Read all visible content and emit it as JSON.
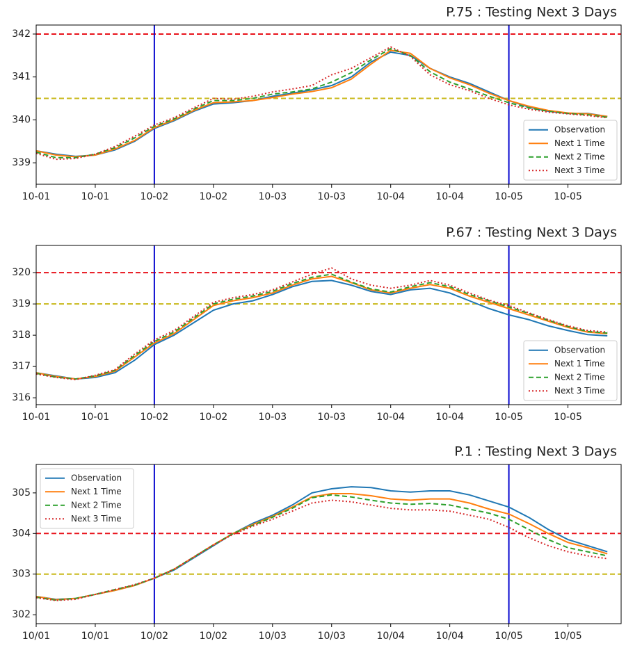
{
  "chart_data": [
    {
      "type": "line",
      "title": "P.75 : Testing Next 3 Days",
      "legend": "lower right",
      "x": [
        0,
        4,
        8,
        12,
        16,
        20,
        24,
        28,
        32,
        36,
        40,
        44,
        48,
        52,
        56,
        60,
        64,
        68,
        72,
        76,
        80,
        84,
        88,
        92,
        96,
        100,
        104,
        108,
        112,
        116
      ],
      "xlim": [
        0,
        118.8
      ],
      "ylim": [
        338.5,
        342.21
      ],
      "xticks": [
        {
          "value": 0,
          "label": "10-01"
        },
        {
          "value": 12,
          "label": "10-01"
        },
        {
          "value": 24,
          "label": "10-02"
        },
        {
          "value": 36,
          "label": "10-02"
        },
        {
          "value": 48,
          "label": "10-03"
        },
        {
          "value": 60,
          "label": "10-03"
        },
        {
          "value": 72,
          "label": "10-04"
        },
        {
          "value": 84,
          "label": "10-04"
        },
        {
          "value": 96,
          "label": "10-05"
        },
        {
          "value": 108,
          "label": "10-05"
        }
      ],
      "yticks": [
        339,
        340,
        341,
        342
      ],
      "hlines": [
        {
          "value": 342,
          "color": "#e8121b"
        },
        {
          "value": 340.5,
          "color": "#c8b818"
        }
      ],
      "vlines": [
        {
          "value": 24,
          "color": "#0a0ad0"
        },
        {
          "value": 96,
          "color": "#0a0ad0"
        }
      ],
      "series": [
        {
          "name": "Observation",
          "color": "#1f77b4",
          "dash": "solid",
          "values": [
            339.28,
            339.2,
            339.15,
            339.18,
            339.3,
            339.5,
            339.8,
            339.98,
            340.2,
            340.37,
            340.4,
            340.45,
            340.55,
            340.62,
            340.7,
            340.8,
            341.0,
            341.35,
            341.58,
            341.5,
            341.2,
            341.0,
            340.85,
            340.65,
            340.45,
            340.3,
            340.2,
            340.15,
            340.15,
            340.08
          ]
        },
        {
          "name": "Next 1 Time",
          "color": "#ff7f0e",
          "dash": "solid",
          "values": [
            339.28,
            339.18,
            339.14,
            339.18,
            339.32,
            339.52,
            339.82,
            340.0,
            340.22,
            340.4,
            340.42,
            340.45,
            340.52,
            340.6,
            340.66,
            340.75,
            340.95,
            341.3,
            341.62,
            341.55,
            341.2,
            340.98,
            340.82,
            340.62,
            340.45,
            340.32,
            340.22,
            340.16,
            340.14,
            340.08
          ]
        },
        {
          "name": "Next 2 Time",
          "color": "#2ca02c",
          "dash": "dashed",
          "values": [
            339.25,
            339.12,
            339.12,
            339.2,
            339.35,
            339.58,
            339.85,
            340.02,
            340.25,
            340.45,
            340.45,
            340.5,
            340.6,
            340.65,
            340.72,
            340.88,
            341.1,
            341.4,
            341.66,
            341.5,
            341.12,
            340.88,
            340.72,
            340.55,
            340.4,
            340.28,
            340.2,
            340.15,
            340.12,
            340.06
          ]
        },
        {
          "name": "Next 3 Time",
          "color": "#d62728",
          "dash": "dotted",
          "values": [
            339.22,
            339.08,
            339.1,
            339.2,
            339.38,
            339.62,
            339.88,
            340.05,
            340.28,
            340.5,
            340.48,
            340.55,
            340.65,
            340.72,
            340.8,
            341.05,
            341.2,
            341.45,
            341.7,
            341.48,
            341.05,
            340.82,
            340.68,
            340.5,
            340.35,
            340.25,
            340.18,
            340.14,
            340.1,
            340.05
          ]
        }
      ]
    },
    {
      "type": "line",
      "title": "P.67 : Testing Next 3 Days",
      "legend": "lower right",
      "x": [
        0,
        4,
        8,
        12,
        16,
        20,
        24,
        28,
        32,
        36,
        40,
        44,
        48,
        52,
        56,
        60,
        64,
        68,
        72,
        76,
        80,
        84,
        88,
        92,
        96,
        100,
        104,
        108,
        112,
        116
      ],
      "xlim": [
        0,
        118.8
      ],
      "ylim": [
        315.78,
        320.87
      ],
      "xticks": [
        {
          "value": 0,
          "label": "10-01"
        },
        {
          "value": 12,
          "label": "10-01"
        },
        {
          "value": 24,
          "label": "10-02"
        },
        {
          "value": 36,
          "label": "10-02"
        },
        {
          "value": 48,
          "label": "10-03"
        },
        {
          "value": 60,
          "label": "10-03"
        },
        {
          "value": 72,
          "label": "10-04"
        },
        {
          "value": 84,
          "label": "10-04"
        },
        {
          "value": 96,
          "label": "10-05"
        },
        {
          "value": 108,
          "label": "10-05"
        }
      ],
      "yticks": [
        316,
        317,
        318,
        319,
        320
      ],
      "hlines": [
        {
          "value": 320,
          "color": "#e8121b"
        },
        {
          "value": 319,
          "color": "#c8b818"
        }
      ],
      "vlines": [
        {
          "value": 24,
          "color": "#0a0ad0"
        },
        {
          "value": 96,
          "color": "#0a0ad0"
        }
      ],
      "series": [
        {
          "name": "Observation",
          "color": "#1f77b4",
          "dash": "solid",
          "values": [
            316.8,
            316.7,
            316.6,
            316.65,
            316.8,
            317.2,
            317.7,
            318.0,
            318.4,
            318.8,
            319.0,
            319.1,
            319.3,
            319.55,
            319.72,
            319.75,
            319.6,
            319.4,
            319.3,
            319.45,
            319.5,
            319.35,
            319.1,
            318.85,
            318.65,
            318.5,
            318.3,
            318.15,
            318.02,
            317.98
          ]
        },
        {
          "name": "Next 1 Time",
          "color": "#ff7f0e",
          "dash": "solid",
          "values": [
            316.8,
            316.68,
            316.6,
            316.68,
            316.85,
            317.3,
            317.75,
            318.05,
            318.5,
            318.95,
            319.1,
            319.2,
            319.35,
            319.6,
            319.8,
            319.88,
            319.68,
            319.45,
            319.35,
            319.5,
            319.62,
            319.5,
            319.25,
            319.05,
            318.85,
            318.65,
            318.45,
            318.25,
            318.1,
            318.05
          ]
        },
        {
          "name": "Next 2 Time",
          "color": "#2ca02c",
          "dash": "dashed",
          "values": [
            316.78,
            316.66,
            316.6,
            316.7,
            316.88,
            317.35,
            317.8,
            318.1,
            318.55,
            319.0,
            319.15,
            319.25,
            319.4,
            319.65,
            319.85,
            319.95,
            319.7,
            319.48,
            319.38,
            319.55,
            319.68,
            319.55,
            319.3,
            319.1,
            318.9,
            318.7,
            318.48,
            318.28,
            318.12,
            318.07
          ]
        },
        {
          "name": "Next 3 Time",
          "color": "#d62728",
          "dash": "dotted",
          "values": [
            316.76,
            316.65,
            316.58,
            316.72,
            316.9,
            317.4,
            317.85,
            318.15,
            318.6,
            319.05,
            319.2,
            319.3,
            319.45,
            319.7,
            319.95,
            320.15,
            319.8,
            319.6,
            319.5,
            319.6,
            319.75,
            319.6,
            319.35,
            319.12,
            318.95,
            318.72,
            318.5,
            318.3,
            318.15,
            318.1
          ]
        }
      ]
    },
    {
      "type": "line",
      "title": "P.1 : Testing Next 3 Days",
      "legend": "upper left",
      "x": [
        0,
        4,
        8,
        12,
        16,
        20,
        24,
        28,
        32,
        36,
        40,
        44,
        48,
        52,
        56,
        60,
        64,
        68,
        72,
        76,
        80,
        84,
        88,
        92,
        96,
        100,
        104,
        108,
        112,
        116
      ],
      "xlim": [
        0,
        118.8
      ],
      "ylim": [
        301.78,
        305.7
      ],
      "xticks": [
        {
          "value": 0,
          "label": "10/01"
        },
        {
          "value": 12,
          "label": "10/01"
        },
        {
          "value": 24,
          "label": "10/02"
        },
        {
          "value": 36,
          "label": "10/02"
        },
        {
          "value": 48,
          "label": "10/03"
        },
        {
          "value": 60,
          "label": "10/03"
        },
        {
          "value": 72,
          "label": "10/04"
        },
        {
          "value": 84,
          "label": "10/04"
        },
        {
          "value": 96,
          "label": "10/05"
        },
        {
          "value": 108,
          "label": "10/05"
        }
      ],
      "yticks": [
        302,
        303,
        304,
        305
      ],
      "hlines": [
        {
          "value": 304,
          "color": "#e8121b"
        },
        {
          "value": 303,
          "color": "#c8b818"
        }
      ],
      "vlines": [
        {
          "value": 24,
          "color": "#0a0ad0"
        },
        {
          "value": 96,
          "color": "#0a0ad0"
        }
      ],
      "series": [
        {
          "name": "Observation",
          "color": "#1f77b4",
          "dash": "solid",
          "values": [
            302.45,
            302.38,
            302.4,
            302.5,
            302.6,
            302.72,
            302.9,
            303.1,
            303.4,
            303.7,
            304.0,
            304.25,
            304.45,
            304.7,
            305.0,
            305.1,
            305.15,
            305.13,
            305.05,
            305.02,
            305.05,
            305.05,
            304.95,
            304.8,
            304.65,
            304.4,
            304.1,
            303.85,
            303.7,
            303.55
          ]
        },
        {
          "name": "Next 1 Time",
          "color": "#ff7f0e",
          "dash": "solid",
          "values": [
            302.45,
            302.37,
            302.4,
            302.5,
            302.6,
            302.72,
            302.9,
            303.12,
            303.42,
            303.72,
            304.0,
            304.22,
            304.42,
            304.65,
            304.9,
            304.98,
            304.98,
            304.93,
            304.85,
            304.82,
            304.85,
            304.85,
            304.75,
            304.6,
            304.48,
            304.25,
            304.0,
            303.78,
            303.65,
            303.5
          ]
        },
        {
          "name": "Next 2 Time",
          "color": "#2ca02c",
          "dash": "dashed",
          "values": [
            302.43,
            302.36,
            302.4,
            302.5,
            302.62,
            302.73,
            302.9,
            303.12,
            303.42,
            303.72,
            304.0,
            304.2,
            304.4,
            304.62,
            304.88,
            304.95,
            304.9,
            304.82,
            304.75,
            304.72,
            304.74,
            304.7,
            304.6,
            304.5,
            304.35,
            304.1,
            303.85,
            303.65,
            303.55,
            303.45
          ]
        },
        {
          "name": "Next 3 Time",
          "color": "#d62728",
          "dash": "dotted",
          "values": [
            302.42,
            302.35,
            302.38,
            302.5,
            302.62,
            302.74,
            302.9,
            303.12,
            303.42,
            303.72,
            303.98,
            304.18,
            304.35,
            304.55,
            304.75,
            304.82,
            304.78,
            304.7,
            304.62,
            304.58,
            304.58,
            304.55,
            304.45,
            304.35,
            304.15,
            303.9,
            303.7,
            303.55,
            303.45,
            303.38
          ]
        }
      ]
    }
  ]
}
